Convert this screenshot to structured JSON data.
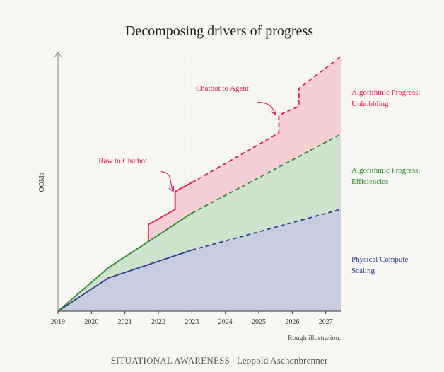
{
  "chart_data": {
    "type": "area",
    "title": "Decomposing drivers of progress",
    "ylabel": "OOMs",
    "xlabel": "",
    "x_ticks": [
      "2019",
      "2020",
      "2021",
      "2022",
      "2023",
      "2024",
      "2025",
      "2026",
      "2027"
    ],
    "xlim": [
      2019,
      2027.45
    ],
    "ylim": [
      0,
      10
    ],
    "projection_start": 2023,
    "series": [
      {
        "name": "Physical Compute Scaling",
        "color": "#2e3d8f",
        "fill": "#c8ccdf",
        "points": [
          [
            2019,
            0
          ],
          [
            2020.5,
            1.3
          ],
          [
            2023,
            2.4
          ],
          [
            2027.45,
            4.0
          ]
        ]
      },
      {
        "name": "Algorithmic Progress: Efficiencies",
        "color": "#2e8b2e",
        "fill": "#cde3cd",
        "points": [
          [
            2019,
            0
          ],
          [
            2020.5,
            1.7
          ],
          [
            2023,
            3.85
          ],
          [
            2027.45,
            6.95
          ]
        ]
      },
      {
        "name": "Algorithmic Progress: Unhobbling",
        "color": "#e8174f",
        "fill": "#f5cfd4",
        "points": [
          [
            2021.7,
            2.75
          ],
          [
            2021.7,
            3.4
          ],
          [
            2022.5,
            4.0
          ],
          [
            2022.5,
            4.7
          ],
          [
            2023,
            5.05
          ],
          [
            2025.6,
            7.0
          ],
          [
            2025.6,
            7.7
          ],
          [
            2026.2,
            8.05
          ],
          [
            2026.2,
            8.75
          ],
          [
            2027.45,
            10.0
          ]
        ]
      }
    ],
    "annotations": [
      {
        "text": "Raw to Chatbot",
        "x": 2022.5,
        "y": 4.65,
        "color": "#e8174f"
      },
      {
        "text": "Chatbot to Agent",
        "x": 2025.6,
        "y": 7.55,
        "color": "#e8174f"
      }
    ],
    "note": "Rough illustration.",
    "grid": false
  },
  "footer": "SITUATIONAL AWARENESS | Leopold Aschenbrenner"
}
